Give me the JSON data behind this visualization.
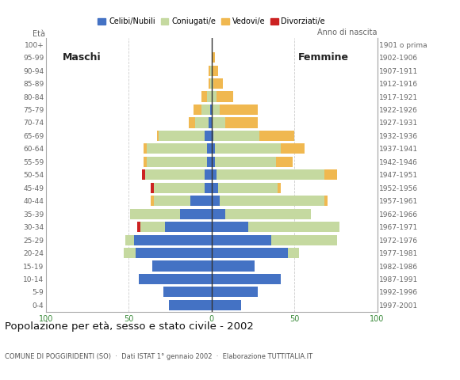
{
  "age_groups": [
    "0-4",
    "5-9",
    "10-14",
    "15-19",
    "20-24",
    "25-29",
    "30-34",
    "35-39",
    "40-44",
    "45-49",
    "50-54",
    "55-59",
    "60-64",
    "65-69",
    "70-74",
    "75-79",
    "80-84",
    "85-89",
    "90-94",
    "95-99",
    "100+"
  ],
  "birth_years": [
    "1997-2001",
    "1992-1996",
    "1987-1991",
    "1982-1986",
    "1977-1981",
    "1972-1976",
    "1967-1971",
    "1962-1966",
    "1957-1961",
    "1952-1956",
    "1947-1951",
    "1942-1946",
    "1937-1941",
    "1932-1936",
    "1927-1931",
    "1922-1926",
    "1917-1921",
    "1912-1916",
    "1907-1911",
    "1902-1906",
    "1901 o prima"
  ],
  "males": {
    "celibi": [
      26,
      29,
      44,
      36,
      46,
      47,
      28,
      19,
      13,
      4,
      4,
      3,
      3,
      4,
      2,
      1,
      0,
      0,
      0,
      0,
      0
    ],
    "coniugati": [
      0,
      0,
      0,
      0,
      7,
      5,
      15,
      30,
      22,
      31,
      36,
      36,
      36,
      28,
      8,
      5,
      3,
      1,
      1,
      0,
      0
    ],
    "vedovi": [
      0,
      0,
      0,
      0,
      0,
      0,
      0,
      0,
      2,
      0,
      0,
      2,
      2,
      1,
      4,
      5,
      3,
      1,
      1,
      0,
      0
    ],
    "divorziati": [
      0,
      0,
      0,
      0,
      0,
      0,
      2,
      0,
      0,
      2,
      2,
      0,
      0,
      0,
      0,
      0,
      0,
      0,
      0,
      0,
      0
    ]
  },
  "females": {
    "nubili": [
      18,
      28,
      42,
      26,
      46,
      36,
      22,
      8,
      5,
      4,
      3,
      2,
      2,
      1,
      0,
      0,
      0,
      0,
      0,
      0,
      0
    ],
    "coniugate": [
      0,
      0,
      0,
      0,
      7,
      40,
      55,
      52,
      63,
      36,
      65,
      37,
      40,
      28,
      8,
      5,
      3,
      1,
      0,
      0,
      0
    ],
    "vedove": [
      0,
      0,
      0,
      0,
      0,
      0,
      0,
      0,
      2,
      2,
      8,
      10,
      14,
      21,
      20,
      23,
      10,
      6,
      4,
      2,
      0
    ],
    "divorziate": [
      0,
      0,
      0,
      0,
      0,
      0,
      0,
      0,
      0,
      0,
      0,
      0,
      0,
      0,
      0,
      0,
      0,
      0,
      0,
      0,
      0
    ]
  },
  "colors": {
    "celibi": "#4472c4",
    "coniugati": "#c5d9a0",
    "vedovi": "#f0b850",
    "divorziati": "#cc2222"
  },
  "title": "Popolazione per età, sesso e stato civile - 2002",
  "subtitle": "COMUNE DI POGGIRIDENTI (SO)  ·  Dati ISTAT 1° gennaio 2002  ·  Elaborazione TUTTITALIA.IT",
  "xlim": 100,
  "maschi_label": "Maschi",
  "femmine_label": "Femmine",
  "ylabel": "Età",
  "ylabel_right": "Anno di nascita",
  "legend_labels": [
    "Celibi/Nubili",
    "Coniugati/e",
    "Vedovi/e",
    "Divorziati/e"
  ],
  "bg_color": "#ffffff",
  "grid_color": "#cccccc",
  "axis_label_color": "#666666",
  "tick_color_x": "#3a8a3a"
}
